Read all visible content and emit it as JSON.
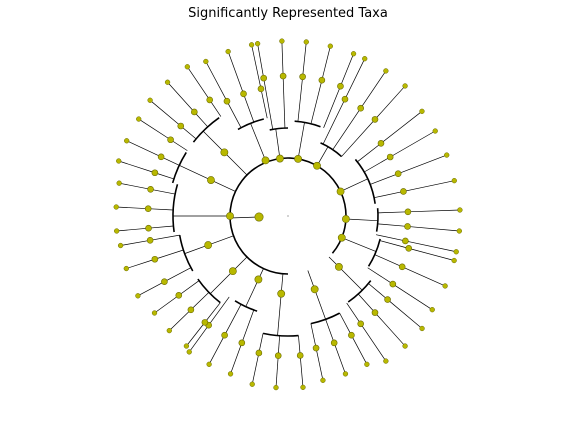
{
  "figure": {
    "title": "Significantly Represented Taxa"
  },
  "colors": {
    "node_fill": "#b8b800",
    "node_stroke": "#6a6a00",
    "edge": "#000000",
    "background": "#ffffff"
  },
  "tree": {
    "type": "circular-cladogram"
  }
}
